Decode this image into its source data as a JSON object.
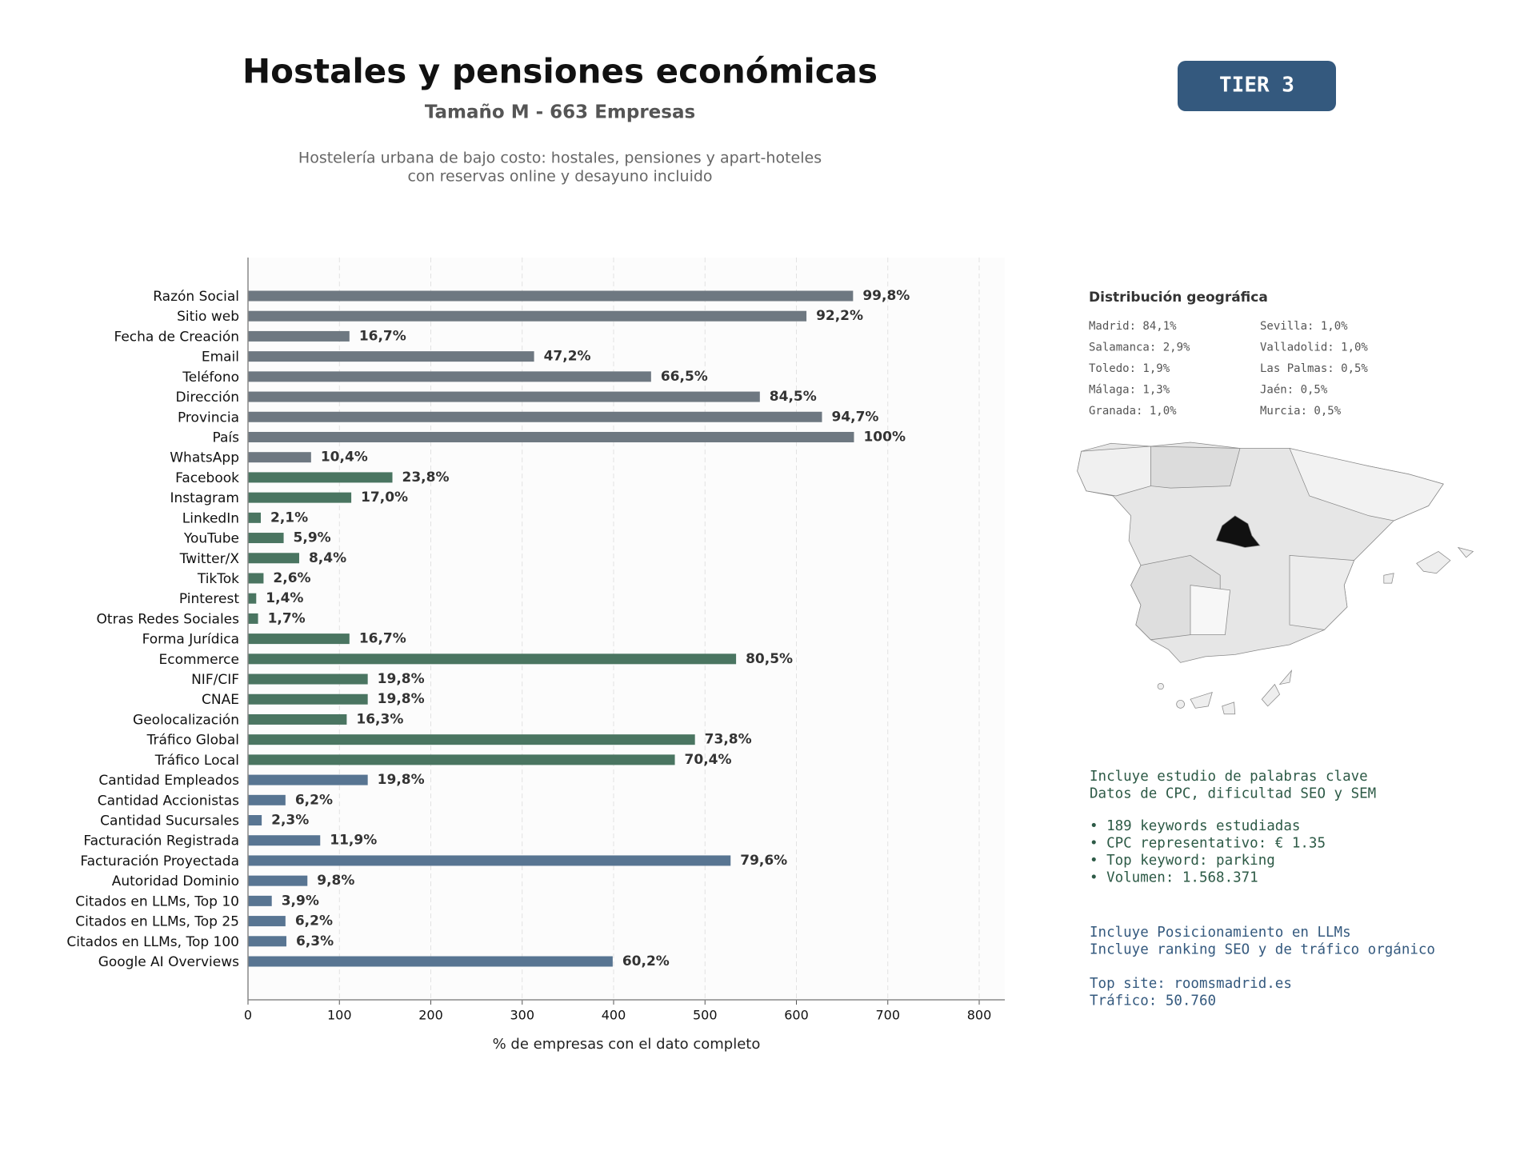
{
  "chart_data": {
    "type": "barh",
    "title": "Hostales y pensiones económicas",
    "subtitle": "Tamaño M - 663 Empresas",
    "description": [
      "Hostelería urbana de bajo costo: hostales, pensiones y apart-hoteles",
      "con reservas online y desayuno incluido"
    ],
    "xlabel": "% de empresas con el dato completo",
    "categories": [
      "Razón Social",
      "Sitio web",
      "Fecha de Creación",
      "Email",
      "Teléfono",
      "Dirección",
      "Provincia",
      "País",
      "WhatsApp",
      "Facebook",
      "Instagram",
      "LinkedIn",
      "YouTube",
      "Twitter/X",
      "TikTok",
      "Pinterest",
      "Otras Redes Sociales",
      "Forma Jurídica",
      "Ecommerce",
      "NIF/CIF",
      "CNAE",
      "Geolocalización",
      "Tráfico Global",
      "Tráfico Local",
      "Cantidad Empleados",
      "Cantidad Accionistas",
      "Cantidad Sucursales",
      "Facturación Registrada",
      "Facturación Proyectada",
      "Autoridad Dominio",
      "Citados en LLMs, Top 10",
      "Citados en LLMs, Top 25",
      "Citados en LLMs, Top 100",
      "Google AI Overviews"
    ],
    "values": [
      662,
      611,
      111,
      313,
      441,
      560,
      628,
      663,
      69,
      158,
      113,
      14,
      39,
      56,
      17,
      9,
      11,
      111,
      534,
      131,
      131,
      108,
      489,
      467,
      131,
      41,
      15,
      79,
      528,
      65,
      26,
      41,
      42,
      399
    ],
    "value_labels": [
      "99,8%",
      "92,2%",
      "16,7%",
      "47,2%",
      "66,5%",
      "84,5%",
      "94,7%",
      "100%",
      "10,4%",
      "23,8%",
      "17,0%",
      "2,1%",
      "5,9%",
      "8,4%",
      "2,6%",
      "1,4%",
      "1,7%",
      "16,7%",
      "80,5%",
      "19,8%",
      "19,8%",
      "16,3%",
      "73,8%",
      "70,4%",
      "19,8%",
      "6,2%",
      "2,3%",
      "11,9%",
      "79,6%",
      "9,8%",
      "3,9%",
      "6,2%",
      "6,3%",
      "60,2%"
    ],
    "colors": [
      "#6e7881",
      "#6e7881",
      "#6e7881",
      "#6e7881",
      "#6e7881",
      "#6e7881",
      "#6e7881",
      "#6e7881",
      "#6e7881",
      "#4a7561",
      "#4a7561",
      "#4a7561",
      "#4a7561",
      "#4a7561",
      "#4a7561",
      "#4a7561",
      "#4a7561",
      "#4a7561",
      "#4a7561",
      "#4a7561",
      "#4a7561",
      "#4a7561",
      "#4a7561",
      "#4a7561",
      "#587592",
      "#587592",
      "#587592",
      "#587592",
      "#587592",
      "#587592",
      "#587592",
      "#587592",
      "#587592",
      "#587592"
    ],
    "xlim": [
      0,
      830
    ],
    "xticks": [
      0,
      100,
      200,
      300,
      400,
      500,
      600,
      700,
      800
    ],
    "grid": true
  },
  "tier": "TIER 3",
  "geo": {
    "title": "Distribución geográfica",
    "items": [
      "Madrid: 84,1%",
      "Salamanca: 2,9%",
      "Toledo: 1,9%",
      "Málaga: 1,3%",
      "Granada: 1,0%",
      "Sevilla: 1,0%",
      "Valladolid: 1,0%",
      "Las Palmas: 0,5%",
      "Jaén: 0,5%",
      "Murcia: 0,5%"
    ]
  },
  "keywords": {
    "intro": [
      "Incluye estudio de palabras clave",
      "Datos de CPC, dificultad SEO y SEM"
    ],
    "bullets": [
      "• 189 keywords estudiadas",
      "• CPC representativo: € 1.35",
      "• Top keyword: parking",
      "• Volumen: 1.568.371"
    ]
  },
  "llm": {
    "intro": [
      "Incluye Posicionamiento en LLMs",
      "Incluye ranking SEO y de tráfico orgánico"
    ],
    "site": [
      "Top site: roomsmadrid.es",
      "Tráfico: 50.760"
    ]
  }
}
